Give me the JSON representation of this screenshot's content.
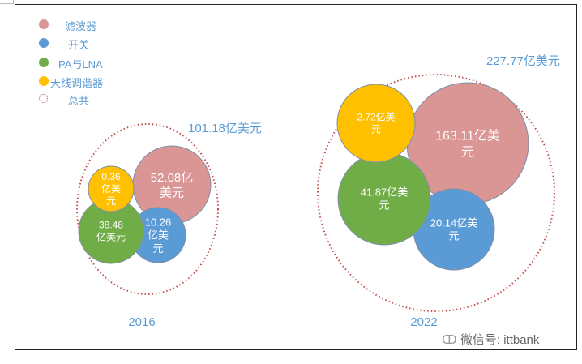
{
  "chart_data": {
    "type": "bubble",
    "legend_position": "top-left",
    "series": [
      {
        "name": "滤波器",
        "color": "#d99694"
      },
      {
        "name": "开关",
        "color": "#5b9bd5"
      },
      {
        "name": "PA与LNA",
        "color": "#70ad47"
      },
      {
        "name": "天线调谐器",
        "color": "#ffc000"
      },
      {
        "name": "总共",
        "color": "#c0504d"
      }
    ],
    "groups": [
      {
        "year": "2016",
        "total": 101.18,
        "total_label": "101.18亿美元",
        "values": [
          52.08,
          10.26,
          38.48,
          0.36
        ],
        "labels": [
          [
            "52.08亿",
            "美元"
          ],
          [
            "10.26",
            "亿美",
            "元"
          ],
          [
            "38.48",
            "亿美元"
          ],
          [
            "0.36",
            "亿美",
            "元"
          ]
        ]
      },
      {
        "year": "2022",
        "total": 227.77,
        "total_label": "227.77亿美元",
        "values": [
          163.11,
          20.14,
          41.87,
          2.72
        ],
        "labels": [
          [
            "163.11亿美",
            "元"
          ],
          [
            "20.14亿美",
            "元"
          ],
          [
            "41.87亿美",
            "元"
          ],
          [
            "2.72亿美",
            "元"
          ]
        ]
      }
    ],
    "unit": "亿美元"
  },
  "watermark": "微信号: ittbank"
}
